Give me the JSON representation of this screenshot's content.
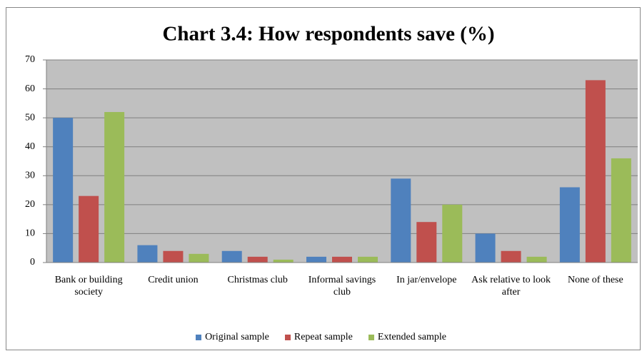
{
  "chart_data": {
    "type": "bar",
    "title": "Chart 3.4: How respondents save (%)",
    "categories": [
      "Bank or building society",
      "Credit union",
      "Christmas club",
      "Informal savings club",
      "In jar/envelope",
      "Ask relative to look after",
      "None of these"
    ],
    "series": [
      {
        "name": "Original sample",
        "color": "#4f81bd",
        "values": [
          50,
          6,
          4,
          2,
          29,
          10,
          26
        ]
      },
      {
        "name": "Repeat sample",
        "color": "#c0504d",
        "values": [
          23,
          4,
          2,
          2,
          14,
          4,
          63
        ]
      },
      {
        "name": "Extended sample",
        "color": "#9bbb59",
        "values": [
          52,
          3,
          1,
          2,
          20,
          2,
          36
        ]
      }
    ],
    "ylim": [
      0,
      70
    ],
    "yticks": [
      0,
      10,
      20,
      30,
      40,
      50,
      60,
      70
    ],
    "grid": true,
    "legend": "bottom"
  }
}
